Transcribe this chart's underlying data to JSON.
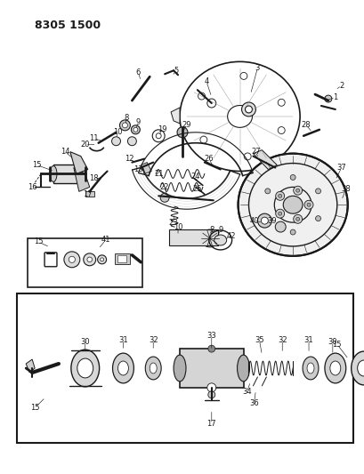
{
  "title": "8305 1500",
  "bg_color": "#ffffff",
  "line_color": "#1a1a1a",
  "title_fontsize": 9,
  "label_fontsize": 6.0,
  "fig_w": 4.1,
  "fig_h": 5.33,
  "dpi": 100
}
